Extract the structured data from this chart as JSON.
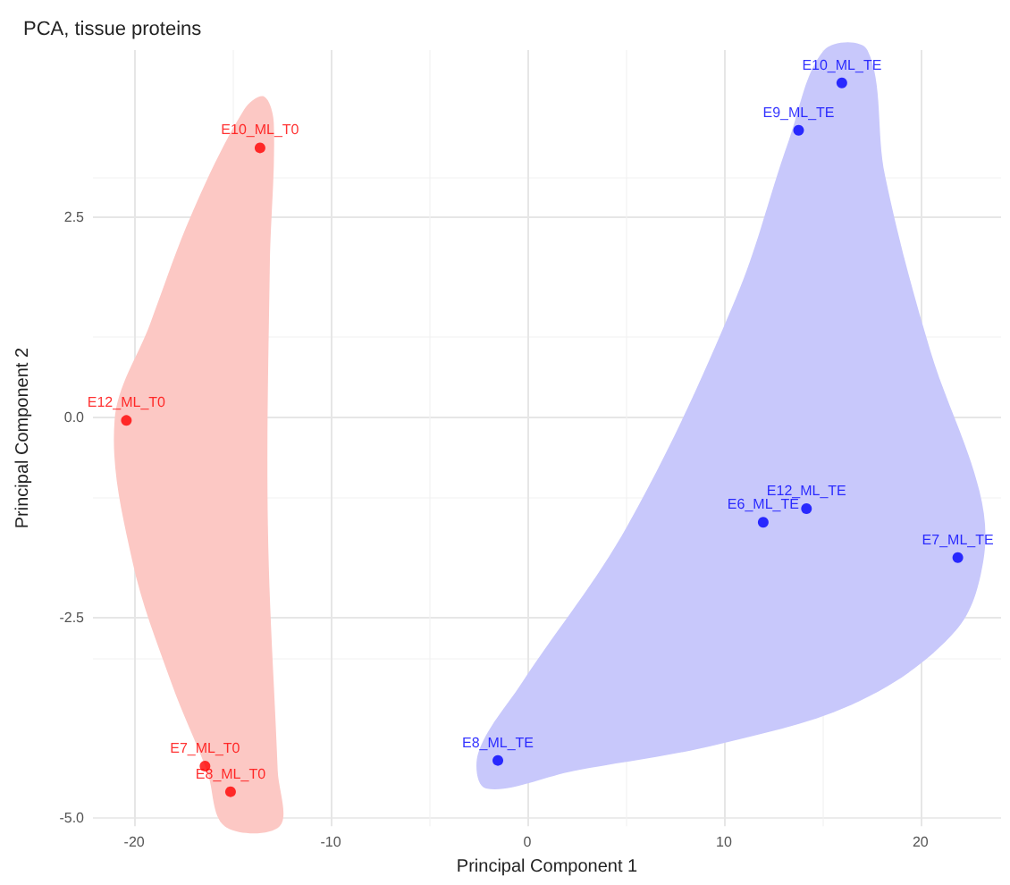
{
  "chart_data": {
    "type": "scatter",
    "title": "PCA, tissue proteins",
    "xlabel": "Principal Component 1",
    "ylabel": "Principal Component 2",
    "xlim": [
      -22.1,
      24.1
    ],
    "ylim": [
      -5.1,
      4.58
    ],
    "xticks": [
      -20,
      -10,
      0,
      10,
      20
    ],
    "yticks": [
      {
        "value": -5,
        "label": "-5.0"
      },
      {
        "value": -2.5,
        "label": "-2.5"
      },
      {
        "value": 0,
        "label": "0.0"
      },
      {
        "value": 2.5,
        "label": "2.5"
      }
    ],
    "grid": true,
    "marker": "circle",
    "series": [
      {
        "type": "area",
        "marker": "none",
        "color": "#fcc8c4",
        "x": [
          -13.4,
          -14.4,
          -17.0,
          -19.2,
          -21.0,
          -20.1,
          -18.1,
          -16.3,
          -15.4,
          -12.6,
          -12.7,
          -13.2,
          -13.1,
          -12.9
        ],
        "values": [
          4.0,
          3.84,
          2.58,
          1.16,
          -0.04,
          -1.79,
          -3.32,
          -4.41,
          -5.1,
          -5.1,
          -4.41,
          -1.35,
          1.92,
          3.67
        ]
      },
      {
        "type": "area",
        "marker": "none",
        "color": "#c8c8fb",
        "x": [
          15.1,
          17.3,
          18.2,
          20.5,
          23.0,
          23.2,
          21.8,
          16.9,
          9.7,
          2.4,
          -2.1,
          -2.5,
          -0.3,
          5.1,
          10.6,
          13.3
        ],
        "values": [
          4.58,
          4.58,
          3.01,
          0.83,
          -0.92,
          -1.79,
          -2.66,
          -3.54,
          -4.08,
          -4.41,
          -4.63,
          -4.19,
          -3.32,
          -1.35,
          1.48,
          3.45
        ]
      },
      {
        "color": "#ff0000",
        "x": [
          -13.6,
          -20.4,
          -16.4,
          -15.1
        ],
        "values": [
          3.36,
          -0.04,
          -4.35,
          -4.67
        ],
        "value_labels": [
          "E10_ML_T0",
          "E12_ML_T0",
          "E7_ML_T0",
          "E8_ML_T0"
        ]
      },
      {
        "color": "#0000ff",
        "x": [
          16.0,
          13.8,
          14.2,
          12.0,
          21.9,
          -1.5
        ],
        "values": [
          4.17,
          3.58,
          -1.14,
          -1.31,
          -1.75,
          -4.28
        ],
        "value_labels": [
          "E10_ML_TE",
          "E9_ML_TE",
          "E12_ML_TE",
          "E6_ML_TE",
          "E7_ML_TE",
          "E8_ML_TE"
        ]
      }
    ]
  }
}
